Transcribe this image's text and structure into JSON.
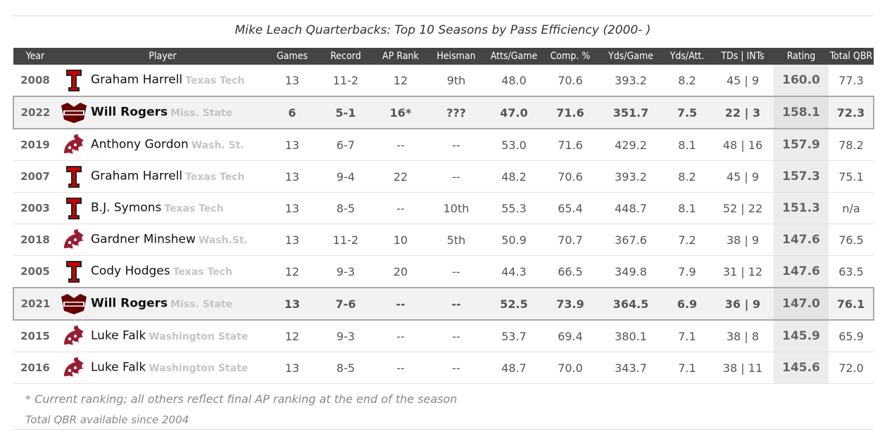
{
  "chart_data": {
    "type": "table",
    "title": "Mike Leach Quarterbacks: Top 10 Seasons by Pass Efficiency (2000- )",
    "columns": [
      "Year",
      "Player",
      "Games",
      "Record",
      "AP Rank",
      "Heisman",
      "Atts/Game",
      "Comp. %",
      "Yds/Game",
      "Yds/Att.",
      "TDs | INTs",
      "Rating",
      "Total QBR"
    ],
    "rows": [
      {
        "year": "2008",
        "logo": "texas-tech-logo",
        "player": "Graham Harrell",
        "school": "Texas Tech",
        "games": "13",
        "record": "11-2",
        "ap_rank": "12",
        "heisman": "9th",
        "atts_game": "48.0",
        "comp_pct": "70.6",
        "yds_game": "393.2",
        "yds_att": "8.2",
        "tds_ints": "45 | 9",
        "rating": "160.0",
        "qbr": "77.3",
        "highlight": false
      },
      {
        "year": "2022",
        "logo": "miss-state-logo",
        "player": "Will Rogers",
        "school": "Miss. State",
        "games": "6",
        "record": "5-1",
        "ap_rank": "16*",
        "heisman": "???",
        "atts_game": "47.0",
        "comp_pct": "71.6",
        "yds_game": "351.7",
        "yds_att": "7.5",
        "tds_ints": "22 | 3",
        "rating": "158.1",
        "qbr": "72.3",
        "highlight": true
      },
      {
        "year": "2019",
        "logo": "wash-state-logo",
        "player": "Anthony Gordon",
        "school": "Wash. St.",
        "games": "13",
        "record": "6-7",
        "ap_rank": "--",
        "heisman": "--",
        "atts_game": "53.0",
        "comp_pct": "71.6",
        "yds_game": "429.2",
        "yds_att": "8.1",
        "tds_ints": "48 | 16",
        "rating": "157.9",
        "qbr": "78.2",
        "highlight": false
      },
      {
        "year": "2007",
        "logo": "texas-tech-logo",
        "player": "Graham Harrell",
        "school": "Texas Tech",
        "games": "13",
        "record": "9-4",
        "ap_rank": "22",
        "heisman": "--",
        "atts_game": "48.2",
        "comp_pct": "70.6",
        "yds_game": "393.2",
        "yds_att": "8.2",
        "tds_ints": "45 | 9",
        "rating": "157.3",
        "qbr": "75.1",
        "highlight": false
      },
      {
        "year": "2003",
        "logo": "texas-tech-logo",
        "player": "B.J. Symons",
        "school": "Texas Tech",
        "games": "13",
        "record": "8-5",
        "ap_rank": "--",
        "heisman": "10th",
        "atts_game": "55.3",
        "comp_pct": "65.4",
        "yds_game": "448.7",
        "yds_att": "8.1",
        "tds_ints": "52 | 22",
        "rating": "151.3",
        "qbr": "n/a",
        "highlight": false
      },
      {
        "year": "2018",
        "logo": "wash-state-logo",
        "player": "Gardner Minshew",
        "school": "Wash.St.",
        "games": "13",
        "record": "11-2",
        "ap_rank": "10",
        "heisman": "5th",
        "atts_game": "50.9",
        "comp_pct": "70.7",
        "yds_game": "367.6",
        "yds_att": "7.2",
        "tds_ints": "38 | 9",
        "rating": "147.6",
        "qbr": "76.5",
        "highlight": false
      },
      {
        "year": "2005",
        "logo": "texas-tech-logo",
        "player": "Cody Hodges",
        "school": "Texas Tech",
        "games": "12",
        "record": "9-3",
        "ap_rank": "20",
        "heisman": "--",
        "atts_game": "44.3",
        "comp_pct": "66.5",
        "yds_game": "349.8",
        "yds_att": "7.9",
        "tds_ints": "31 | 12",
        "rating": "147.6",
        "qbr": "63.5",
        "highlight": false
      },
      {
        "year": "2021",
        "logo": "miss-state-logo",
        "player": "Will Rogers",
        "school": "Miss. State",
        "games": "13",
        "record": "7-6",
        "ap_rank": "--",
        "heisman": "--",
        "atts_game": "52.5",
        "comp_pct": "73.9",
        "yds_game": "364.5",
        "yds_att": "6.9",
        "tds_ints": "36 | 9",
        "rating": "147.0",
        "qbr": "76.1",
        "highlight": true
      },
      {
        "year": "2015",
        "logo": "wash-state-logo",
        "player": "Luke Falk",
        "school": "Washington State",
        "games": "12",
        "record": "9-3",
        "ap_rank": "--",
        "heisman": "--",
        "atts_game": "53.7",
        "comp_pct": "69.4",
        "yds_game": "380.1",
        "yds_att": "7.1",
        "tds_ints": "38 | 8",
        "rating": "145.9",
        "qbr": "65.9",
        "highlight": false
      },
      {
        "year": "2016",
        "logo": "wash-state-logo",
        "player": "Luke Falk",
        "school": "Washington State",
        "games": "13",
        "record": "8-5",
        "ap_rank": "--",
        "heisman": "--",
        "atts_game": "48.7",
        "comp_pct": "70.0",
        "yds_game": "343.7",
        "yds_att": "7.1",
        "tds_ints": "38 | 11",
        "rating": "145.6",
        "qbr": "72.0",
        "highlight": false
      }
    ],
    "footnotes": [
      "* Current ranking; all others reflect final AP ranking at the end of the season",
      "Total QBR available since 2004"
    ]
  },
  "colors": {
    "header_bg": "#444444",
    "texas_tech_red": "#cc0000",
    "miss_state_maroon": "#660000",
    "wash_state_crimson": "#981e32",
    "rating_bg": "#ececec",
    "highlight_border": "#aaaaaa"
  }
}
